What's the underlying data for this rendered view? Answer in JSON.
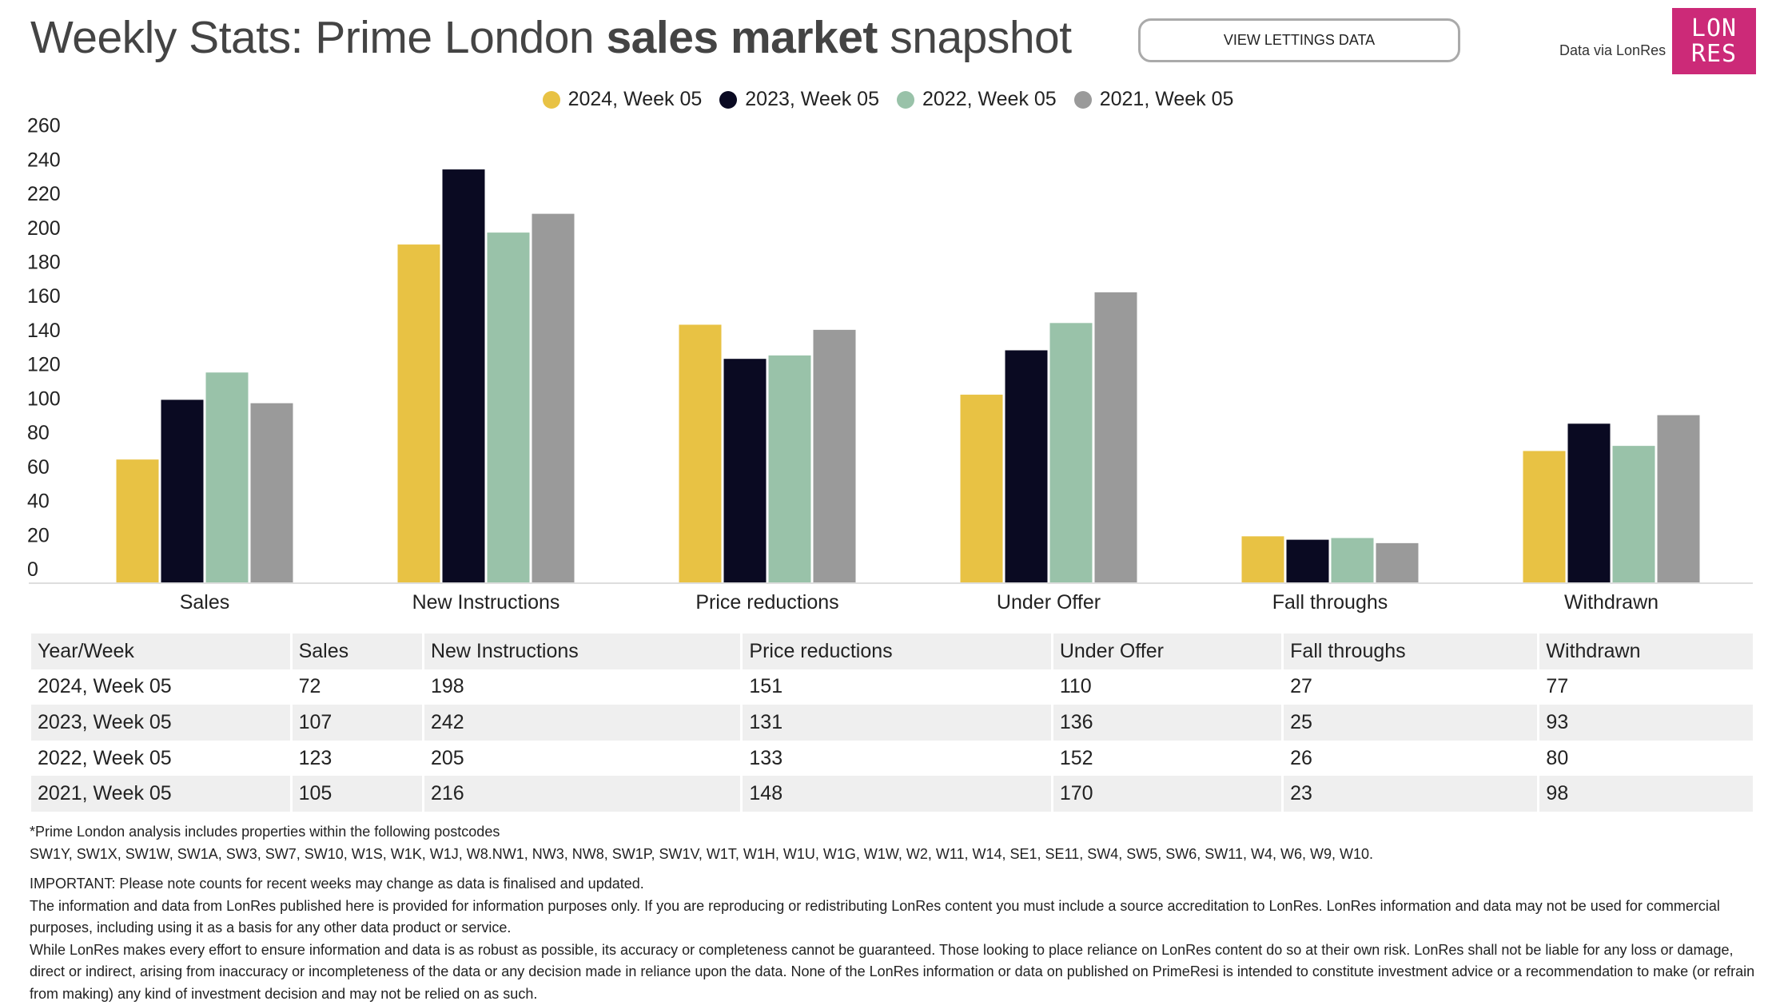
{
  "header": {
    "title_pre": "Weekly Stats: Prime London ",
    "title_bold": "sales market",
    "title_post": " snapshot",
    "button": "VIEW LETTINGS DATA",
    "via": "Data via LonRes",
    "logo": "LON RES"
  },
  "chart_data": {
    "type": "bar",
    "categories": [
      "Sales",
      "New Instructions",
      "Price reductions",
      "Under Offer",
      "Fall throughs",
      "Withdrawn"
    ],
    "series": [
      {
        "name": "2024, Week 05",
        "color": "#e8c244",
        "values": [
          72,
          198,
          151,
          110,
          27,
          77
        ]
      },
      {
        "name": "2023, Week 05",
        "color": "#0a0a22",
        "values": [
          107,
          242,
          131,
          136,
          25,
          93
        ]
      },
      {
        "name": "2022, Week 05",
        "color": "#99c2a9",
        "values": [
          123,
          205,
          133,
          152,
          26,
          80
        ]
      },
      {
        "name": "2021, Week 05",
        "color": "#9a9a9a",
        "values": [
          105,
          216,
          148,
          170,
          23,
          98
        ]
      }
    ],
    "yticks": [
      0,
      20,
      40,
      60,
      80,
      100,
      120,
      140,
      160,
      180,
      200,
      220,
      240,
      260
    ],
    "ylim": [
      0,
      260
    ],
    "legend": "top-center",
    "grid": false
  },
  "table": {
    "headers": [
      "Year/Week",
      "Sales",
      "New Instructions",
      "Price reductions",
      "Under Offer",
      "Fall throughs",
      "Withdrawn"
    ],
    "rows": [
      [
        "2024, Week 05",
        "72",
        "198",
        "151",
        "110",
        "27",
        "77"
      ],
      [
        "2023, Week 05",
        "107",
        "242",
        "131",
        "136",
        "25",
        "93"
      ],
      [
        "2022, Week 05",
        "123",
        "205",
        "133",
        "152",
        "26",
        "80"
      ],
      [
        "2021, Week 05",
        "105",
        "216",
        "148",
        "170",
        "23",
        "98"
      ]
    ]
  },
  "notes": [
    "*Prime London analysis includes properties within the following postcodes",
    "SW1Y, SW1X, SW1W, SW1A, SW3, SW7, SW10, W1S, W1K, W1J, W8.NW1, NW3, NW8, SW1P, SW1V, W1T, W1H, W1U, W1G, W1W, W2, W11, W14, SE1, SE11, SW4, SW5, SW6, SW11, W4, W6, W9, W10.",
    "IMPORTANT: Please note counts for recent weeks may change as data is finalised and updated.",
    "The information and data from LonRes published here is provided for information purposes only. If you are reproducing or redistributing LonRes content you must include a source accreditation to LonRes. LonRes information and data may not be used for commercial purposes, including using it as a basis for any other data product or service.",
    "While LonRes makes every effort to ensure information and data is as robust as possible, its accuracy or completeness cannot be guaranteed. Those looking to place reliance on LonRes content do so at their own risk. LonRes shall not be liable for any loss or damage, direct or indirect, arising from inaccuracy or incompleteness of the data or any decision made in reliance upon the data. None of the LonRes information or data on published on PrimeResi is intended to constitute investment advice or a recommendation to make (or refrain from making) any kind of investment decision and may not be relied on as such."
  ]
}
